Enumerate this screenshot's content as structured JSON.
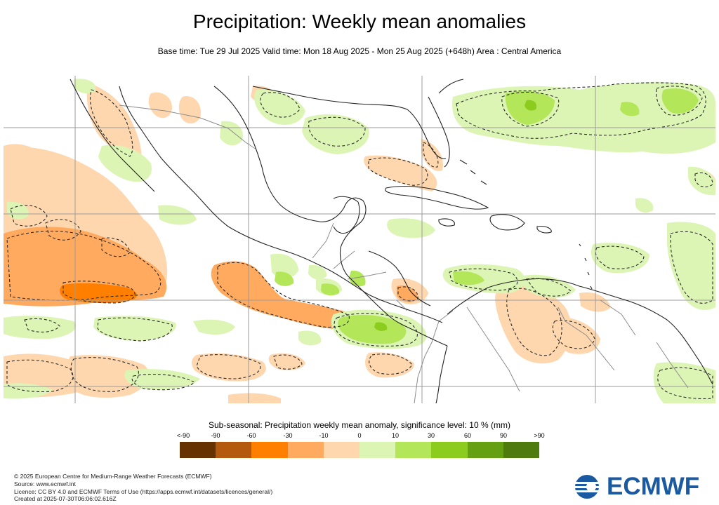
{
  "header": {
    "title": "Precipitation: Weekly mean anomalies",
    "subtitle": "Base time: Tue 29 Jul 2025 Valid time: Mon 18 Aug 2025 - Mon 25 Aug 2025 (+648h) Area : Central America"
  },
  "legend": {
    "title": "Sub-seasonal: Precipitation weekly mean anomaly, significance level: 10 % (mm)",
    "ticks": [
      "<-90",
      "-90",
      "-60",
      "-30",
      "-10",
      "0",
      "10",
      "30",
      "60",
      "90",
      ">90"
    ],
    "colors": [
      "#653200",
      "#b35a0f",
      "#ff8000",
      "#ffaa5f",
      "#ffd7ae",
      "#dcf5b4",
      "#b4e65a",
      "#8ccc1e",
      "#64a012",
      "#4f7a0d"
    ]
  },
  "map": {
    "colors": {
      "ocean": "#ffffff",
      "coast": "#222222",
      "border": "#8c8c8c",
      "grid": "#9b9b9b",
      "contour": "#2b2b2b",
      "dry_light": "#ffd7ae",
      "dry_mid": "#ffaa5f",
      "dry_strong": "#ff8000",
      "wet_light": "#dcf5b4",
      "wet_mid": "#b4e65a",
      "wet_strong": "#8ccc1e"
    }
  },
  "footer": {
    "copyright": "© 2025 European Centre for Medium-Range Weather Forecasts (ECMWF)",
    "source": "Source: www.ecmwf.int",
    "licence": "Licence: CC BY 4.0 and ECMWF Terms of Use (https://apps.ecmwf.int/datasets/licences/general/)",
    "created": "Created at 2025-07-30T06:06:02.616Z"
  },
  "logo": {
    "text": "ECMWF",
    "color": "#1a5aa0"
  }
}
